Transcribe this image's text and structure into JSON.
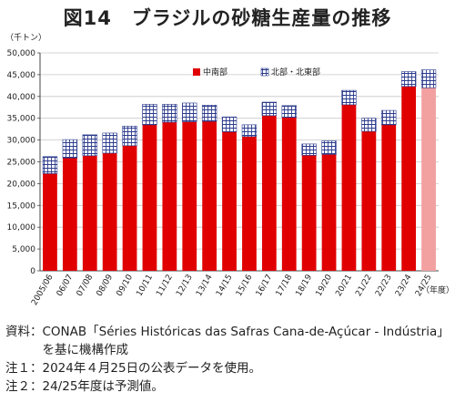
{
  "title": "図14　ブラジルの砂糖生産量の推移",
  "unit_label": "（千トン）",
  "x_unit_label": "（年度）",
  "notes": [
    {
      "label": "資料：",
      "text": "CONAB「Séries Históricas das Safras Cana-de-Açúcar - Indústria」を基に機構作成"
    },
    {
      "label": "注１：",
      "text": "2024年４月25日の公表データを使用。"
    },
    {
      "label": "注２：",
      "text": "24/25年度は予測値。"
    }
  ],
  "colors": {
    "center_south": "#e00000",
    "center_south_forecast": "#f2a0a0",
    "north_northeast": "#2b3a8c",
    "grid": "#c8c8c8"
  },
  "chart_data": {
    "type": "bar",
    "stacked": true,
    "title": "図14　ブラジルの砂糖生産量の推移",
    "ylabel": "（千トン）",
    "xlabel": "（年度）",
    "ylim": [
      0,
      50000
    ],
    "yticks": [
      "0",
      "5,000",
      "10,000",
      "15,000",
      "20,000",
      "25,000",
      "30,000",
      "35,000",
      "40,000",
      "45,000",
      "50,000"
    ],
    "grid": true,
    "legend_position": "top-center",
    "categories": [
      "2005/06",
      "06/07",
      "07/08",
      "08/09",
      "09/10",
      "10/11",
      "11/12",
      "12/13",
      "13/14",
      "14/15",
      "15/16",
      "16/17",
      "17/18",
      "18/19",
      "19/20",
      "20/21",
      "21/22",
      "22/23",
      "23/24",
      "24/25"
    ],
    "series": [
      {
        "name": "中南部",
        "values": [
          22300,
          25900,
          26400,
          27000,
          28700,
          33500,
          34100,
          34200,
          34300,
          31900,
          30800,
          35600,
          35200,
          26500,
          26700,
          38100,
          32000,
          33500,
          42300,
          42000
        ]
      },
      {
        "name": "北部・北東部",
        "values": [
          3900,
          4200,
          4800,
          4600,
          4500,
          4700,
          4100,
          4300,
          3700,
          3400,
          2700,
          3100,
          2700,
          2600,
          3100,
          3300,
          3000,
          3300,
          3400,
          4100
        ]
      }
    ],
    "forecast_index": 19
  }
}
